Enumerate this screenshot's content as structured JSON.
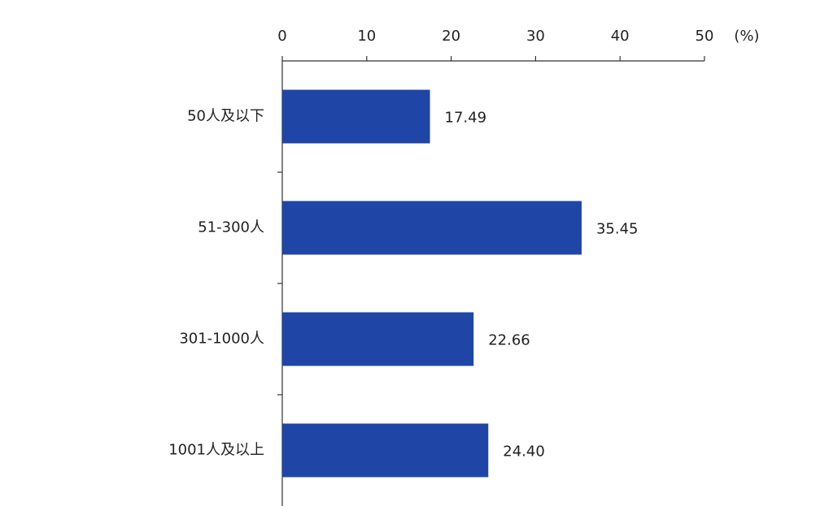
{
  "chart_data": {
    "type": "hbar",
    "xlabel": "(%)",
    "categories": [
      "50人及以下",
      "51-300人",
      "301-1000人",
      "1001人及以上"
    ],
    "values": [
      17.49,
      35.45,
      22.66,
      24.4
    ],
    "value_labels": [
      "17.49",
      "35.45",
      "22.66",
      "24.40"
    ],
    "color": "#1f46a6",
    "xlim": [
      0,
      50
    ],
    "xticks": [
      0,
      10,
      20,
      30,
      40,
      50
    ]
  }
}
